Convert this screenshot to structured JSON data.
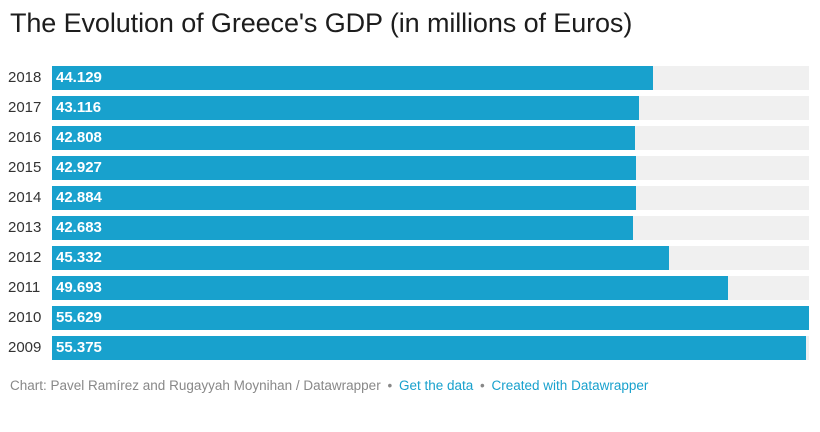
{
  "chart_data": {
    "type": "bar",
    "orientation": "horizontal",
    "title": "The Evolution of Greece's GDP (in millions of Euros)",
    "categories": [
      "2018",
      "2017",
      "2016",
      "2015",
      "2014",
      "2013",
      "2012",
      "2011",
      "2010",
      "2009"
    ],
    "values": [
      44129,
      43116,
      42808,
      42927,
      42884,
      42683,
      45332,
      49693,
      55629,
      55375
    ],
    "value_labels": [
      "44.129",
      "43.116",
      "42.808",
      "42.927",
      "42.884",
      "42.683",
      "45.332",
      "49.693",
      "55.629",
      "55.375"
    ],
    "xlim": [
      0,
      55629
    ],
    "xlabel": "",
    "ylabel": "",
    "grid": false,
    "colors": {
      "bar": "#18a1cd",
      "track": "#f0f0f0",
      "value_text": "#ffffff"
    }
  },
  "footer": {
    "credit": "Chart: Pavel Ramírez and Rugayyah Moynihan / Datawrapper",
    "separator": "•",
    "get_data": "Get the data",
    "created_with": "Created with Datawrapper"
  }
}
